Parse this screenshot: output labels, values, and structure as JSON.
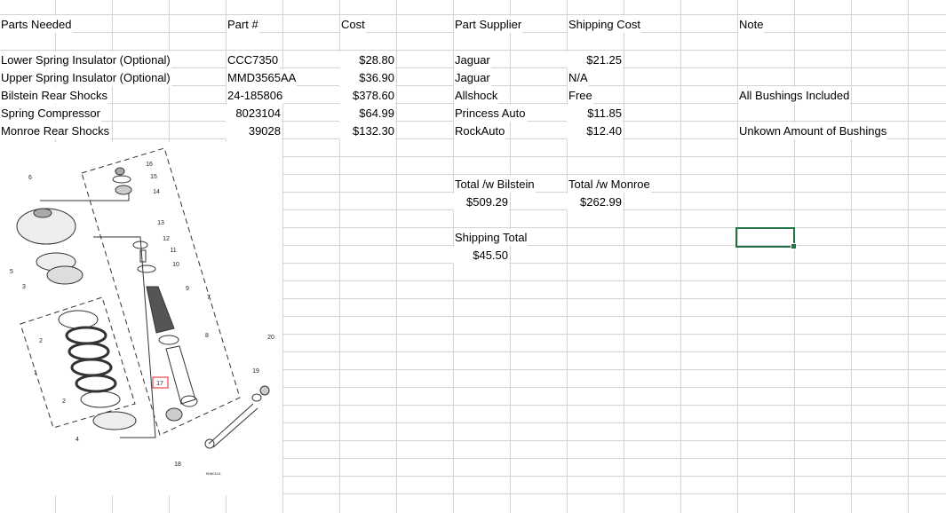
{
  "headers": {
    "parts": "Parts Needed",
    "part_no": "Part #",
    "cost": "Cost",
    "supplier": "Part Supplier",
    "shipping": "Shipping Cost",
    "note": "Note"
  },
  "rows": [
    {
      "part": "Lower Spring Insulator (Optional)",
      "part_no": "CCC7350",
      "cost": "$28.80",
      "supplier": "Jaguar",
      "shipping": "$21.25",
      "note": ""
    },
    {
      "part": "Upper Spring Insulator (Optional)",
      "part_no": "MMD3565AA",
      "cost": "$36.90",
      "supplier": "Jaguar",
      "shipping": "N/A",
      "note": ""
    },
    {
      "part": "Bilstein Rear Shocks",
      "part_no": "24-185806",
      "cost": "$378.60",
      "supplier": "Allshock",
      "shipping": "Free",
      "note": "All Bushings Included"
    },
    {
      "part": "Spring Compressor",
      "part_no": "8023104",
      "cost": "$64.99",
      "supplier": "Princess Auto",
      "shipping": "$11.85",
      "note": ""
    },
    {
      "part": "Monroe Rear Shocks",
      "part_no": "39028",
      "cost": "$132.30",
      "supplier": "RockAuto",
      "shipping": "$12.40",
      "note": "Unkown Amount of Bushings"
    }
  ],
  "totals": {
    "bilstein_label": "Total /w Bilstein",
    "bilstein_value": "$509.29",
    "monroe_label": "Total /w Monroe",
    "monroe_value": "$262.99",
    "shipping_label": "Shipping Total",
    "shipping_value": "$45.50"
  },
  "diagram": {
    "labels": [
      "16",
      "15",
      "14",
      "6",
      "13",
      "12",
      "11",
      "10",
      "9",
      "7",
      "8",
      "20",
      "19",
      "17",
      "2",
      "1",
      "2",
      "5",
      "3",
      "4",
      "18"
    ],
    "code": "SH6011A",
    "highlight_color": "#e02020"
  },
  "colors": {
    "selection": "#217346",
    "gridline": "#d4d4d4"
  }
}
